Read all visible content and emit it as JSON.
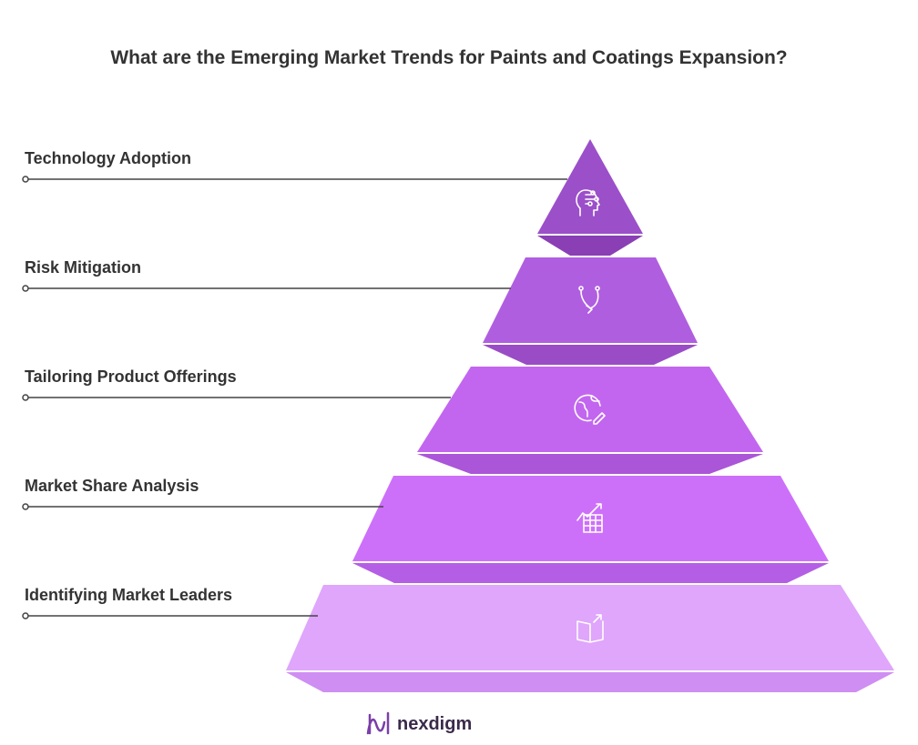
{
  "header": {
    "title": "What are the Emerging Market Trends for Paints and Coatings Expansion?"
  },
  "levels": [
    {
      "label": "Technology Adoption"
    },
    {
      "label": "Risk Mitigation"
    },
    {
      "label": "Tailoring Product Offerings"
    },
    {
      "label": "Market Share Analysis"
    },
    {
      "label": "Identifying Market Leaders"
    }
  ],
  "footer": {
    "logo": "nexdigm"
  }
}
